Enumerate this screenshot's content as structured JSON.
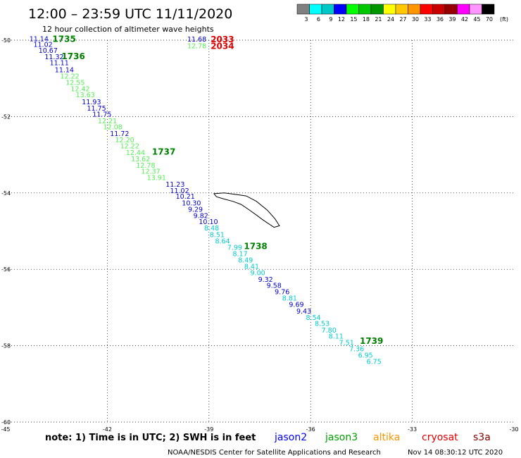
{
  "title": "12:00 – 23:59 UTC 11/11/2020",
  "subtitle": "12 hour collection of altimeter wave heights",
  "legend": {
    "unit": "(ft)",
    "colors": [
      "#808080",
      "#00ffff",
      "#00c8c8",
      "#0000ff",
      "#00ff00",
      "#00c800",
      "#009600",
      "#ffff00",
      "#ffc800",
      "#ff9600",
      "#ff0000",
      "#c80000",
      "#960000",
      "#ff00ff",
      "#ff96ff",
      "#000000"
    ],
    "labels": [
      "3",
      "6",
      "9",
      "12",
      "15",
      "18",
      "21",
      "24",
      "27",
      "30",
      "33",
      "36",
      "39",
      "42",
      "45",
      "70"
    ]
  },
  "footer": {
    "note": "note: 1) Time is in UTC; 2) SWH is in feet",
    "satellites": [
      {
        "name": "jason2",
        "color": "#0000ff"
      },
      {
        "name": "jason3",
        "color": "#00a000"
      },
      {
        "name": "altika",
        "color": "#ff9600"
      },
      {
        "name": "cryosat",
        "color": "#e00000"
      },
      {
        "name": "s3a",
        "color": "#800000"
      }
    ],
    "credit": "NOAA/NESDIS Center for Satellite Applications and Research",
    "timestamp": "Nov 14 08:30:12 UTC 2020"
  },
  "chart_data": {
    "type": "scatter",
    "xlim": [
      -45,
      -30
    ],
    "ylim": [
      -60,
      -50
    ],
    "xticks": [
      "-45",
      "-42",
      "-39",
      "-36",
      "-33",
      "-30"
    ],
    "yticks": [
      "-50",
      "-52",
      "-54",
      "-56",
      "-58",
      "-60"
    ],
    "grid": true,
    "colors": {
      "jason2": "#0000cc",
      "jason3": "#55ee55",
      "cyan": "#00cccc",
      "pass_green": "#008000",
      "pass_red": "#e00000"
    },
    "points": [
      {
        "x": -44.3,
        "y": -49.97,
        "v": "11.14",
        "c": "jason2"
      },
      {
        "x": -44.18,
        "y": -50.12,
        "v": "11.02",
        "c": "jason2"
      },
      {
        "x": -44.03,
        "y": -50.28,
        "v": "10.67",
        "c": "jason2"
      },
      {
        "x": -43.85,
        "y": -50.44,
        "v": "11.32",
        "c": "jason2"
      },
      {
        "x": -43.7,
        "y": -50.6,
        "v": "11.11",
        "c": "jason2"
      },
      {
        "x": -43.55,
        "y": -50.78,
        "v": "11.14",
        "c": "jason2"
      },
      {
        "x": -43.39,
        "y": -50.95,
        "v": "12.22",
        "c": "jason3"
      },
      {
        "x": -43.23,
        "y": -51.12,
        "v": "12.55",
        "c": "jason3"
      },
      {
        "x": -43.08,
        "y": -51.28,
        "v": "12.42",
        "c": "jason3"
      },
      {
        "x": -42.93,
        "y": -51.44,
        "v": "13.63",
        "c": "jason3"
      },
      {
        "x": -42.75,
        "y": -51.62,
        "v": "11.93",
        "c": "jason2"
      },
      {
        "x": -42.6,
        "y": -51.79,
        "v": "11.75",
        "c": "jason2"
      },
      {
        "x": -42.44,
        "y": -51.95,
        "v": "11.75",
        "c": "jason2"
      },
      {
        "x": -42.28,
        "y": -52.12,
        "v": "12.21",
        "c": "jason3"
      },
      {
        "x": -42.12,
        "y": -52.28,
        "v": "12.08",
        "c": "jason3"
      },
      {
        "x": -41.92,
        "y": -52.45,
        "v": "11.72",
        "c": "jason2"
      },
      {
        "x": -41.77,
        "y": -52.62,
        "v": "12.20",
        "c": "jason3"
      },
      {
        "x": -41.62,
        "y": -52.78,
        "v": "12.22",
        "c": "jason3"
      },
      {
        "x": -41.45,
        "y": -52.95,
        "v": "12.44",
        "c": "jason3"
      },
      {
        "x": -41.3,
        "y": -53.12,
        "v": "13.62",
        "c": "jason3"
      },
      {
        "x": -41.15,
        "y": -53.28,
        "v": "12.78",
        "c": "jason3"
      },
      {
        "x": -41.0,
        "y": -53.44,
        "v": "12.37",
        "c": "jason3"
      },
      {
        "x": -40.83,
        "y": -53.61,
        "v": "13.91",
        "c": "jason3"
      },
      {
        "x": -40.28,
        "y": -53.78,
        "v": "11.23",
        "c": "jason2"
      },
      {
        "x": -40.15,
        "y": -53.95,
        "v": "11.02",
        "c": "jason2"
      },
      {
        "x": -39.98,
        "y": -54.1,
        "v": "10.21",
        "c": "jason2"
      },
      {
        "x": -39.8,
        "y": -54.27,
        "v": "10.30",
        "c": "jason2"
      },
      {
        "x": -39.62,
        "y": -54.44,
        "v": "9.29",
        "c": "jason2"
      },
      {
        "x": -39.46,
        "y": -54.6,
        "v": "9.82",
        "c": "jason2"
      },
      {
        "x": -39.3,
        "y": -54.76,
        "v": "10.10",
        "c": "jason2"
      },
      {
        "x": -39.14,
        "y": -54.93,
        "v": "8.48",
        "c": "cyan"
      },
      {
        "x": -38.98,
        "y": -55.1,
        "v": "8.51",
        "c": "cyan"
      },
      {
        "x": -38.82,
        "y": -55.27,
        "v": "8.64",
        "c": "cyan"
      },
      {
        "x": -38.46,
        "y": -55.43,
        "v": "7.99",
        "c": "cyan"
      },
      {
        "x": -38.3,
        "y": -55.6,
        "v": "8.17",
        "c": "cyan"
      },
      {
        "x": -38.14,
        "y": -55.77,
        "v": "8.49",
        "c": "cyan"
      },
      {
        "x": -37.96,
        "y": -55.93,
        "v": "8.41",
        "c": "cyan"
      },
      {
        "x": -37.78,
        "y": -56.1,
        "v": "9.00",
        "c": "cyan"
      },
      {
        "x": -37.55,
        "y": -56.27,
        "v": "9.32",
        "c": "jason2"
      },
      {
        "x": -37.3,
        "y": -56.43,
        "v": "9.58",
        "c": "jason2"
      },
      {
        "x": -37.06,
        "y": -56.6,
        "v": "9.76",
        "c": "jason2"
      },
      {
        "x": -36.84,
        "y": -56.76,
        "v": "8.81",
        "c": "cyan"
      },
      {
        "x": -36.64,
        "y": -56.93,
        "v": "9.69",
        "c": "jason2"
      },
      {
        "x": -36.42,
        "y": -57.1,
        "v": "9.43",
        "c": "jason2"
      },
      {
        "x": -36.14,
        "y": -57.27,
        "v": "8.54",
        "c": "cyan"
      },
      {
        "x": -35.88,
        "y": -57.43,
        "v": "8.53",
        "c": "cyan"
      },
      {
        "x": -35.68,
        "y": -57.6,
        "v": "7.80",
        "c": "cyan"
      },
      {
        "x": -35.47,
        "y": -57.76,
        "v": "8.11",
        "c": "cyan"
      },
      {
        "x": -35.16,
        "y": -57.92,
        "v": "7.51",
        "c": "cyan"
      },
      {
        "x": -34.86,
        "y": -58.09,
        "v": "7.36",
        "c": "cyan"
      },
      {
        "x": -34.6,
        "y": -58.26,
        "v": "6.95",
        "c": "cyan"
      },
      {
        "x": -34.35,
        "y": -58.42,
        "v": "6.75",
        "c": "cyan"
      },
      {
        "x": -39.64,
        "y": -49.98,
        "v": "11.68",
        "c": "jason2"
      },
      {
        "x": -39.64,
        "y": -50.16,
        "v": "12.78",
        "c": "jason3"
      }
    ],
    "pass_labels": [
      {
        "x": -43.62,
        "y": -49.97,
        "t": "1735",
        "c": "pass_green"
      },
      {
        "x": -43.35,
        "y": -50.42,
        "t": "1736",
        "c": "pass_green"
      },
      {
        "x": -40.68,
        "y": -52.92,
        "t": "1737",
        "c": "pass_green"
      },
      {
        "x": -37.97,
        "y": -55.4,
        "t": "1738",
        "c": "pass_green"
      },
      {
        "x": -34.55,
        "y": -57.88,
        "t": "1739",
        "c": "pass_green"
      },
      {
        "x": -38.95,
        "y": -49.98,
        "t": "2033",
        "c": "pass_red"
      },
      {
        "x": -38.95,
        "y": -50.16,
        "t": "2034",
        "c": "pass_red"
      }
    ],
    "coastline": [
      [
        -38.85,
        -54.02
      ],
      [
        -38.55,
        -54.0
      ],
      [
        -38.2,
        -54.04
      ],
      [
        -37.9,
        -54.08
      ],
      [
        -37.6,
        -54.22
      ],
      [
        -37.28,
        -54.45
      ],
      [
        -37.05,
        -54.68
      ],
      [
        -36.92,
        -54.86
      ],
      [
        -37.08,
        -54.9
      ],
      [
        -37.25,
        -54.8
      ],
      [
        -37.42,
        -54.7
      ],
      [
        -37.6,
        -54.58
      ],
      [
        -37.82,
        -54.44
      ],
      [
        -38.05,
        -54.3
      ],
      [
        -38.3,
        -54.22
      ],
      [
        -38.55,
        -54.16
      ],
      [
        -38.78,
        -54.1
      ],
      [
        -38.85,
        -54.02
      ]
    ]
  }
}
